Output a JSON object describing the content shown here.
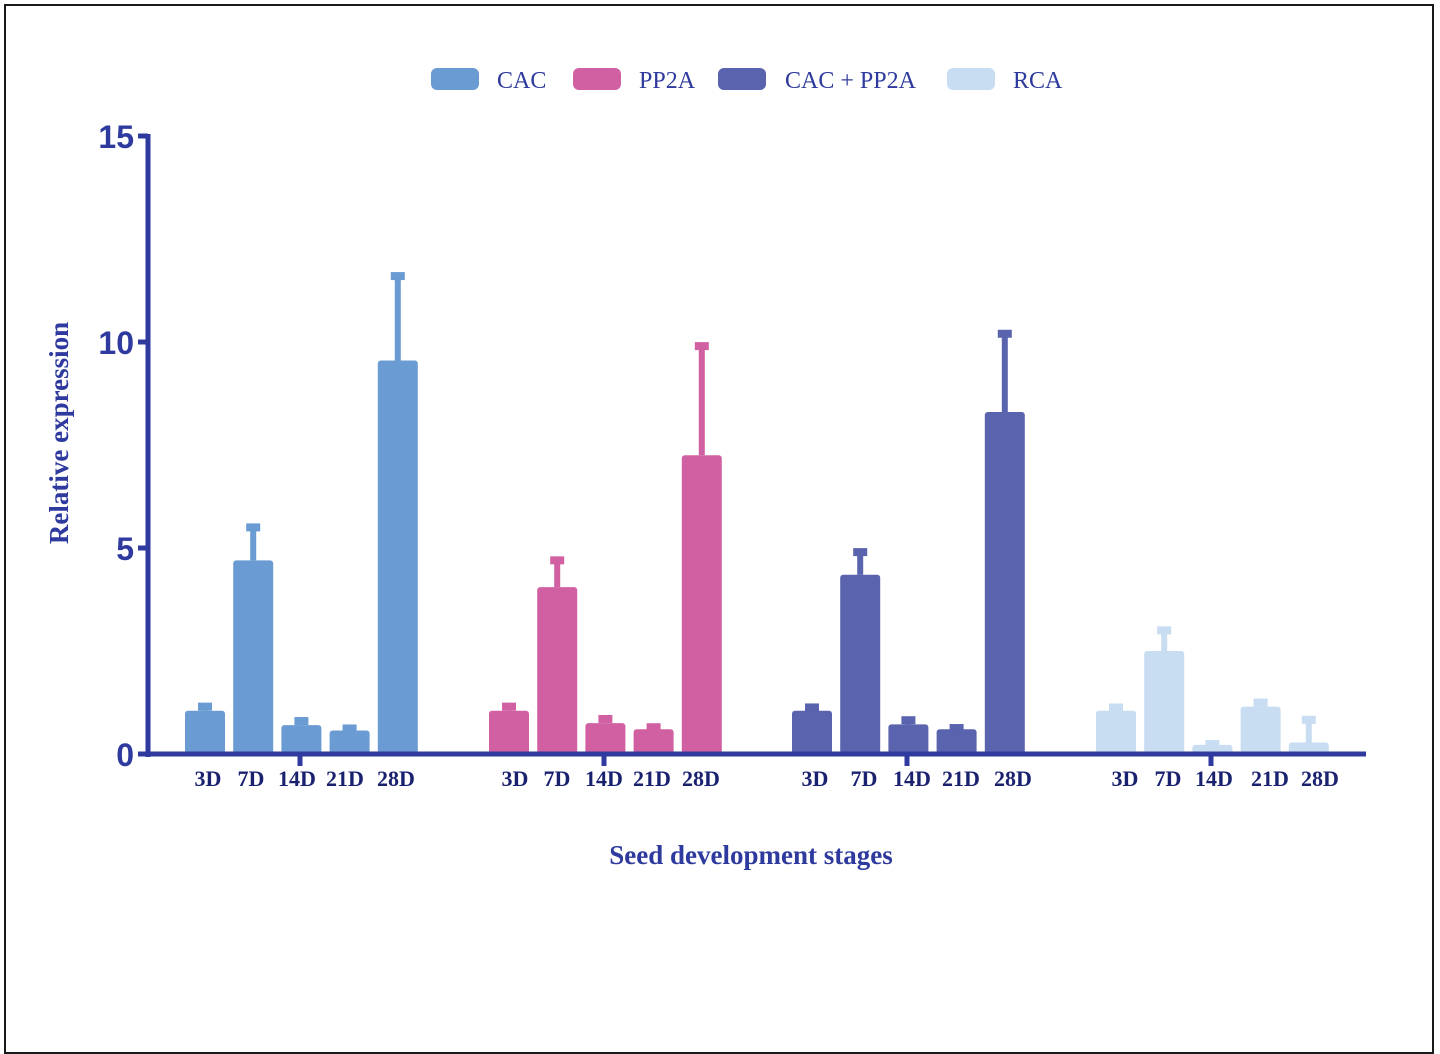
{
  "chart_data": {
    "type": "bar",
    "xlabel": "Seed development stages",
    "ylabel": "Relative expression",
    "ylim": [
      0,
      15
    ],
    "yticks": [
      0,
      5,
      10,
      15
    ],
    "legend_position": "top",
    "categories": [
      "3D",
      "7D",
      "14D",
      "21D",
      "28D"
    ],
    "series": [
      {
        "name": "CAC",
        "color": "#6a9bd2",
        "values": [
          1.05,
          4.7,
          0.7,
          0.57,
          9.55
        ],
        "errors": [
          0.1,
          0.8,
          0.1,
          0.05,
          2.05
        ]
      },
      {
        "name": "PP2A",
        "color": "#d060a2",
        "values": [
          1.05,
          4.05,
          0.75,
          0.6,
          7.25
        ],
        "errors": [
          0.1,
          0.65,
          0.1,
          0.05,
          2.65
        ]
      },
      {
        "name": "CAC + PP2A",
        "color": "#5a63ad",
        "values": [
          1.05,
          4.35,
          0.72,
          0.6,
          8.3
        ],
        "errors": [
          0.08,
          0.55,
          0.1,
          0.03,
          1.9
        ]
      },
      {
        "name": "RCA",
        "color": "#c8dcf2",
        "values": [
          1.05,
          2.5,
          0.22,
          1.15,
          0.28
        ],
        "errors": [
          0.08,
          0.5,
          0.02,
          0.1,
          0.55
        ]
      }
    ]
  }
}
